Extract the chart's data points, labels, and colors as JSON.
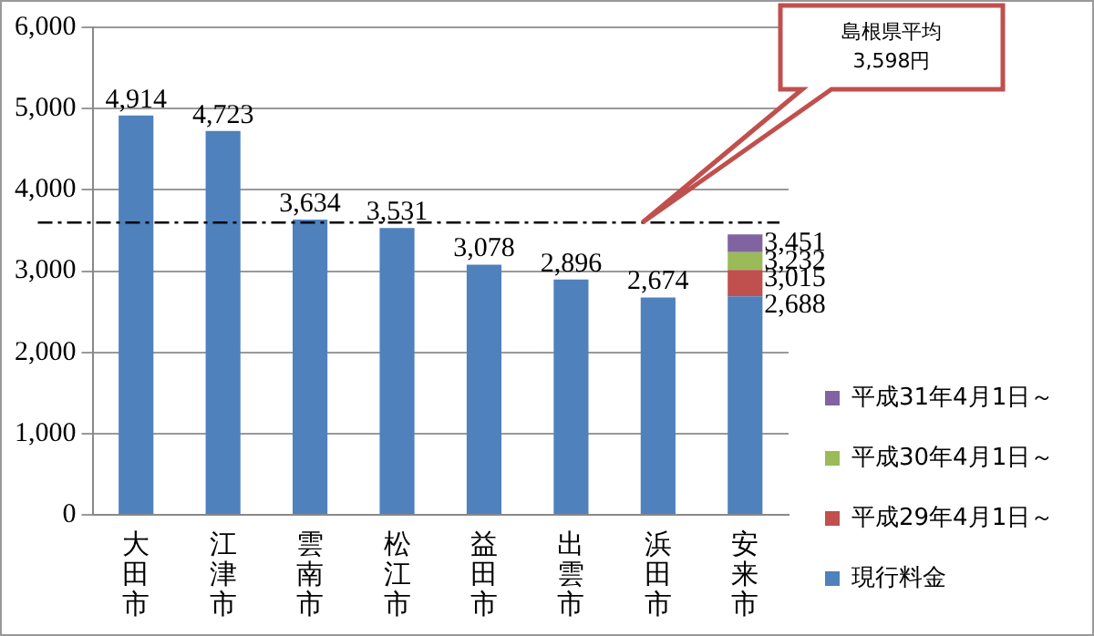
{
  "chart_data": {
    "type": "bar",
    "stacked": true,
    "categories": [
      "大田市",
      "江津市",
      "雲南市",
      "松江市",
      "益田市",
      "出雲市",
      "浜田市",
      "安来市"
    ],
    "series": [
      {
        "name": "現行料金",
        "color": "#4f81bd",
        "values": [
          4914,
          4723,
          3634,
          3531,
          3078,
          2896,
          2674,
          2688
        ],
        "value_labels": [
          "4,914",
          "4,723",
          "3,634",
          "3,531",
          "3,078",
          "2,896",
          "2,674",
          null
        ]
      },
      {
        "name": "平成29年4月1日～",
        "color": "#c0504d",
        "values": [
          null,
          null,
          null,
          null,
          null,
          null,
          null,
          327
        ]
      },
      {
        "name": "平成30年4月1日～",
        "color": "#9bbb59",
        "values": [
          null,
          null,
          null,
          null,
          null,
          null,
          null,
          217
        ]
      },
      {
        "name": "平成31年4月1日～",
        "color": "#8064a2",
        "values": [
          null,
          null,
          null,
          null,
          null,
          null,
          null,
          219
        ]
      }
    ],
    "annotations": [
      "島根県平均 3,598円",
      {
        "text": "2,688",
        "x": "安来市",
        "y": 2688
      },
      {
        "text": "3,015",
        "x": "安来市",
        "y": 3015
      },
      {
        "text": "3,232",
        "x": "安来市",
        "y": 3232
      },
      {
        "text": "3,451",
        "x": "安来市",
        "y": 3451
      }
    ],
    "ylim": [
      0,
      6000
    ],
    "yticks": [
      0,
      {
        "value": 1000,
        "label": "1,000"
      },
      {
        "value": 2000,
        "label": "2,000"
      },
      {
        "value": 3000,
        "label": "3,000"
      },
      {
        "value": 4000,
        "label": "4,000"
      },
      {
        "value": 5000,
        "label": "5,000"
      },
      {
        "value": 6000,
        "label": "6,000"
      }
    ],
    "grid": "y",
    "legend": "right",
    "ref_lines": [
      {
        "axis": "y",
        "value": 3598,
        "color": "#000000",
        "line_style": "dashdot"
      }
    ]
  }
}
